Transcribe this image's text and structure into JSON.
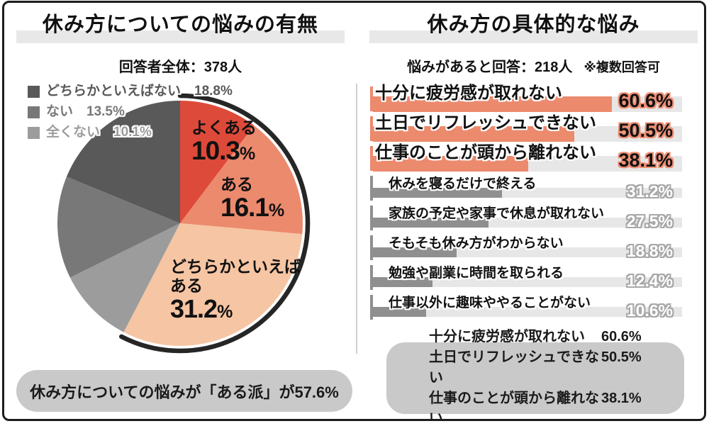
{
  "left_panel": {
    "title": "休み方についての悩みの有無",
    "subtitle": "回答者全体：378人",
    "footer": "休み方についての悩みが「ある派」が57.6%"
  },
  "right_panel": {
    "title": "休み方の具体的な悩み",
    "subtitle": "悩みがあると回答：218人",
    "subtitle_note": "※複数回答可",
    "summary": [
      {
        "label": "十分に疲労感が取れない",
        "value": "60.6%"
      },
      {
        "label": "土日でリフレッシュできない",
        "value": "50.5%"
      },
      {
        "label": "仕事のことが頭から離れない",
        "value": "38.1%"
      }
    ]
  },
  "chart_data": [
    {
      "type": "pie",
      "title": "休み方についての悩みの有無",
      "unit": "%",
      "labels": [
        "よくある",
        "ある",
        "どちらかといえばある",
        "全くない",
        "ない",
        "どちらかといえばない"
      ],
      "values": [
        10.3,
        16.1,
        31.2,
        10.1,
        13.5,
        18.8
      ],
      "colors": [
        "#de4a39",
        "#ec8a6e",
        "#f6c5a3",
        "#9c9c9c",
        "#787878",
        "#595959"
      ],
      "start_angle_deg": 0,
      "clockwise": true,
      "legend_order": [
        5,
        4,
        3
      ],
      "legend_position": "top-left",
      "emphasis_arc": {
        "label": "ある派",
        "value": 57.6,
        "color": "#262626"
      }
    },
    {
      "type": "bar",
      "orientation": "horizontal",
      "title": "休み方の具体的な悩み",
      "unit": "%",
      "categories": [
        "十分に疲労感が取れない",
        "土日でリフレッシュできない",
        "仕事のことが頭から離れない",
        "休みを寝るだけで終える",
        "家族の予定や家事で休息が取れない",
        "そもそも休み方がわからない",
        "勉強や副業に時間を取られる",
        "仕事以外に趣味ややることがない"
      ],
      "values": [
        60.6,
        50.5,
        38.1,
        31.2,
        27.5,
        18.8,
        12.4,
        10.6
      ],
      "emphasized_count": 3,
      "bar_color_emphasis": "#ec8a6e",
      "bar_color_normal": "#8f8f8f",
      "track_color": "#e7e7e7",
      "xlim": [
        0,
        78
      ],
      "grid": false,
      "legend": false
    }
  ]
}
